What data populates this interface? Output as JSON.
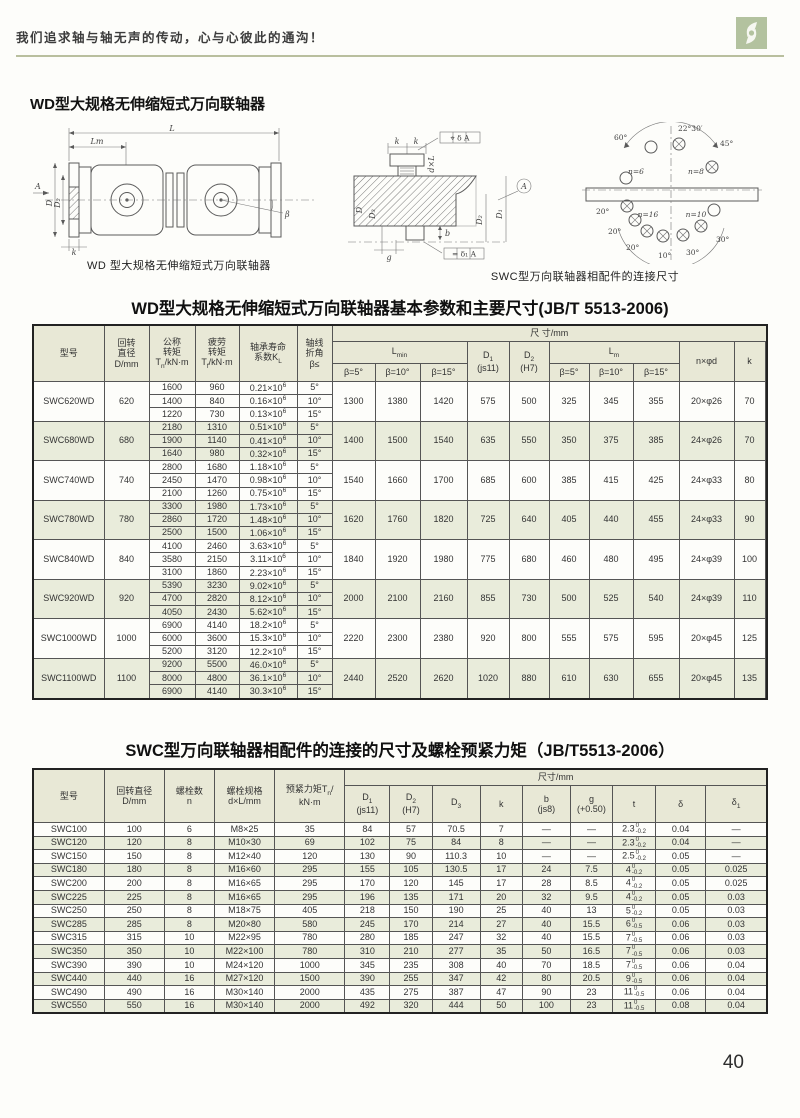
{
  "accent": {
    "divider_color": "#b9bf9e",
    "logo_color": "#b3c29f",
    "header_bg": "#e8e8d6",
    "shade_row_bg": "#e9ecdb"
  },
  "header": {
    "slogan": "我们追求轴与轴无声的传动，心与心彼此的通沟！",
    "logo_icon": "swirl-leaf-logo"
  },
  "section_title": "WD型大规格无伸缩短式万向联轴器",
  "figures": {
    "wd_caption": "WD 型大规格无伸缩短式万向联轴器",
    "swc_caption": "SWC型万向联轴器相配件的连接尺寸",
    "wd_labels": {
      "L": "L",
      "Lm": "Lm",
      "A": "A",
      "D": "D",
      "D2": "D₂",
      "beta": "β",
      "k": "k"
    },
    "swc_labels": {
      "k1": "k",
      "k2": "k",
      "dxl": "d×L",
      "tol_top": "⌖ δ A",
      "tol_bottom": "= δ₁ A",
      "datum": "A",
      "D": "D",
      "D3": "D₃",
      "D2": "D₂",
      "D1": "D₁",
      "b": "b",
      "g": "g"
    },
    "circle_labels": {
      "n6": "n=6",
      "n8": "n=8",
      "n16": "n=16",
      "n10": "n=10",
      "a60": "60°",
      "a2230": "22°30′",
      "a45": "45°",
      "a20a": "20°",
      "a20b": "20°",
      "a20c": "20°",
      "a10": "10°",
      "a30a": "30°",
      "a30b": "30°"
    }
  },
  "table1": {
    "title": "WD型大规格无伸缩短式万向联轴器基本参数和主要尺寸(JB/T 5513-2006)",
    "head": {
      "model": "型号",
      "diameter": "回转\n直径\nD/mm",
      "nominal_torque": "公称\n转矩\nT[s:n]/kN·m",
      "fatigue_torque": "疲劳\n转矩\nT[s:f]/kN·m",
      "bearing_life": "轴承寿命\n系数K[s:L]",
      "angle": "轴线\n折角\nβ≤",
      "dims": "尺  寸/mm",
      "lmin": "L[s:min]",
      "d1": "D[s:1]\n(js11)",
      "d2": "D[s:2]\n(H7)",
      "lm": "L[s:m]",
      "nxd": "n×φd",
      "k": "k",
      "beta5": "β=5°",
      "beta10": "β=10°",
      "beta15": "β=15°"
    },
    "groups": [
      {
        "model": "SWC620WD",
        "diameter": "620",
        "rows": [
          [
            "1600",
            "960",
            "0.21×10[p:6]",
            "5°"
          ],
          [
            "1400",
            "840",
            "0.16×10[p:6]",
            "10°"
          ],
          [
            "1220",
            "730",
            "0.13×10[p:6]",
            "15°"
          ]
        ],
        "lmin": [
          "1300",
          "1380",
          "1420"
        ],
        "d1": "575",
        "d2": "500",
        "lm": [
          "325",
          "345",
          "355"
        ],
        "nxd": "20×φ26",
        "k": "70"
      },
      {
        "model": "SWC680WD",
        "diameter": "680",
        "rows": [
          [
            "2180",
            "1310",
            "0.51×10[p:6]",
            "5°"
          ],
          [
            "1900",
            "1140",
            "0.41×10[p:6]",
            "10°"
          ],
          [
            "1640",
            "980",
            "0.32×10[p:6]",
            "15°"
          ]
        ],
        "lmin": [
          "1400",
          "1500",
          "1540"
        ],
        "d1": "635",
        "d2": "550",
        "lm": [
          "350",
          "375",
          "385"
        ],
        "nxd": "24×φ26",
        "k": "70"
      },
      {
        "model": "SWC740WD",
        "diameter": "740",
        "rows": [
          [
            "2800",
            "1680",
            "1.18×10[p:6]",
            "5°"
          ],
          [
            "2450",
            "1470",
            "0.98×10[p:6]",
            "10°"
          ],
          [
            "2100",
            "1260",
            "0.75×10[p:6]",
            "15°"
          ]
        ],
        "lmin": [
          "1540",
          "1660",
          "1700"
        ],
        "d1": "685",
        "d2": "600",
        "lm": [
          "385",
          "415",
          "425"
        ],
        "nxd": "24×φ33",
        "k": "80"
      },
      {
        "model": "SWC780WD",
        "diameter": "780",
        "rows": [
          [
            "3300",
            "1980",
            "1.73×10[p:6]",
            "5°"
          ],
          [
            "2860",
            "1720",
            "1.48×10[p:6]",
            "10°"
          ],
          [
            "2500",
            "1500",
            "1.06×10[p:6]",
            "15°"
          ]
        ],
        "lmin": [
          "1620",
          "1760",
          "1820"
        ],
        "d1": "725",
        "d2": "640",
        "lm": [
          "405",
          "440",
          "455"
        ],
        "nxd": "24×φ33",
        "k": "90"
      },
      {
        "model": "SWC840WD",
        "diameter": "840",
        "rows": [
          [
            "4100",
            "2460",
            "3.63×10[p:6]",
            "5°"
          ],
          [
            "3580",
            "2150",
            "3.11×10[p:6]",
            "10°"
          ],
          [
            "3100",
            "1860",
            "2.23×10[p:6]",
            "15°"
          ]
        ],
        "lmin": [
          "1840",
          "1920",
          "1980"
        ],
        "d1": "775",
        "d2": "680",
        "lm": [
          "460",
          "480",
          "495"
        ],
        "nxd": "24×φ39",
        "k": "100"
      },
      {
        "model": "SWC920WD",
        "diameter": "920",
        "rows": [
          [
            "5390",
            "3230",
            "9.02×10[p:6]",
            "5°"
          ],
          [
            "4700",
            "2820",
            "8.12×10[p:6]",
            "10°"
          ],
          [
            "4050",
            "2430",
            "5.62×10[p:6]",
            "15°"
          ]
        ],
        "lmin": [
          "2000",
          "2100",
          "2160"
        ],
        "d1": "855",
        "d2": "730",
        "lm": [
          "500",
          "525",
          "540"
        ],
        "nxd": "24×φ39",
        "k": "110"
      },
      {
        "model": "SWC1000WD",
        "diameter": "1000",
        "rows": [
          [
            "6900",
            "4140",
            "18.2×10[p:6]",
            "5°"
          ],
          [
            "6000",
            "3600",
            "15.3×10[p:6]",
            "10°"
          ],
          [
            "5200",
            "3120",
            "12.2×10[p:6]",
            "15°"
          ]
        ],
        "lmin": [
          "2220",
          "2300",
          "2380"
        ],
        "d1": "920",
        "d2": "800",
        "lm": [
          "555",
          "575",
          "595"
        ],
        "nxd": "20×φ45",
        "k": "125"
      },
      {
        "model": "SWC1100WD",
        "diameter": "1100",
        "rows": [
          [
            "9200",
            "5500",
            "46.0×10[p:6]",
            "5°"
          ],
          [
            "8000",
            "4800",
            "36.1×10[p:6]",
            "10°"
          ],
          [
            "6900",
            "4140",
            "30.3×10[p:6]",
            "15°"
          ]
        ],
        "lmin": [
          "2440",
          "2520",
          "2620"
        ],
        "d1": "1020",
        "d2": "880",
        "lm": [
          "610",
          "630",
          "655"
        ],
        "nxd": "20×φ45",
        "k": "135"
      }
    ]
  },
  "table2": {
    "title": "SWC型万向联轴器相配件的连接的尺寸及螺栓预紧力矩（JB/T5513-2006）",
    "head": {
      "model": "型号",
      "diameter": "回转直径\nD/mm",
      "bolt_count": "螺栓数\nn",
      "bolt_spec": "螺栓规格\nd×L/mm",
      "torque": "预紧力矩T[s:n]/\nkN·m",
      "dims": "尺寸/mm",
      "cols": [
        "D[s:1]\n(js11)",
        "D[s:2]\n(H7)",
        "D[s:3]",
        "k",
        "b\n(js8)",
        "g\n(+0.50)",
        "t",
        "δ",
        "δ[s:1]"
      ]
    },
    "rows": [
      [
        "SWC100",
        "100",
        "6",
        "M8×25",
        "35",
        "84",
        "57",
        "70.5",
        "7",
        "—",
        "—",
        "2.3[t:0/-0.2]",
        "0.04",
        "—"
      ],
      [
        "SWC120",
        "120",
        "8",
        "M10×30",
        "69",
        "102",
        "75",
        "84",
        "8",
        "—",
        "—",
        "2.3[t:0/-0.2]",
        "0.04",
        "—"
      ],
      [
        "SWC150",
        "150",
        "8",
        "M12×40",
        "120",
        "130",
        "90",
        "110.3",
        "10",
        "—",
        "—",
        "2.5[t:0/-0.2]",
        "0.05",
        "—"
      ],
      [
        "SWC180",
        "180",
        "8",
        "M16×60",
        "295",
        "155",
        "105",
        "130.5",
        "17",
        "24",
        "7.5",
        "4[t:0/-0.2]",
        "0.05",
        "0.025"
      ],
      [
        "SWC200",
        "200",
        "8",
        "M16×65",
        "295",
        "170",
        "120",
        "145",
        "17",
        "28",
        "8.5",
        "4[t:0/-0.2]",
        "0.05",
        "0.025"
      ],
      [
        "SWC225",
        "225",
        "8",
        "M16×65",
        "295",
        "196",
        "135",
        "171",
        "20",
        "32",
        "9.5",
        "4[t:0/-0.2]",
        "0.05",
        "0.03"
      ],
      [
        "SWC250",
        "250",
        "8",
        "M18×75",
        "405",
        "218",
        "150",
        "190",
        "25",
        "40",
        "13",
        "5[t:0/-0.2]",
        "0.05",
        "0.03"
      ],
      [
        "SWC285",
        "285",
        "8",
        "M20×80",
        "580",
        "245",
        "170",
        "214",
        "27",
        "40",
        "15.5",
        "6[t:0/-0.5]",
        "0.06",
        "0.03"
      ],
      [
        "SWC315",
        "315",
        "10",
        "M22×95",
        "780",
        "280",
        "185",
        "247",
        "32",
        "40",
        "15.5",
        "7[t:0/-0.5]",
        "0.06",
        "0.03"
      ],
      [
        "SWC350",
        "350",
        "10",
        "M22×100",
        "780",
        "310",
        "210",
        "277",
        "35",
        "50",
        "16.5",
        "7[t:0/-0.5]",
        "0.06",
        "0.03"
      ],
      [
        "SWC390",
        "390",
        "10",
        "M24×120",
        "1000",
        "345",
        "235",
        "308",
        "40",
        "70",
        "18.5",
        "7[t:0/-0.5]",
        "0.06",
        "0.04"
      ],
      [
        "SWC440",
        "440",
        "16",
        "M27×120",
        "1500",
        "390",
        "255",
        "347",
        "42",
        "80",
        "20.5",
        "9[t:0/-0.5]",
        "0.06",
        "0.04"
      ],
      [
        "SWC490",
        "490",
        "16",
        "M30×140",
        "2000",
        "435",
        "275",
        "387",
        "47",
        "90",
        "23",
        "11[t:0/-0.5]",
        "0.06",
        "0.04"
      ],
      [
        "SWC550",
        "550",
        "16",
        "M30×140",
        "2000",
        "492",
        "320",
        "444",
        "50",
        "100",
        "23",
        "11[t:0/-0.5]",
        "0.08",
        "0.04"
      ]
    ]
  },
  "footer": {
    "page_number": "40"
  }
}
